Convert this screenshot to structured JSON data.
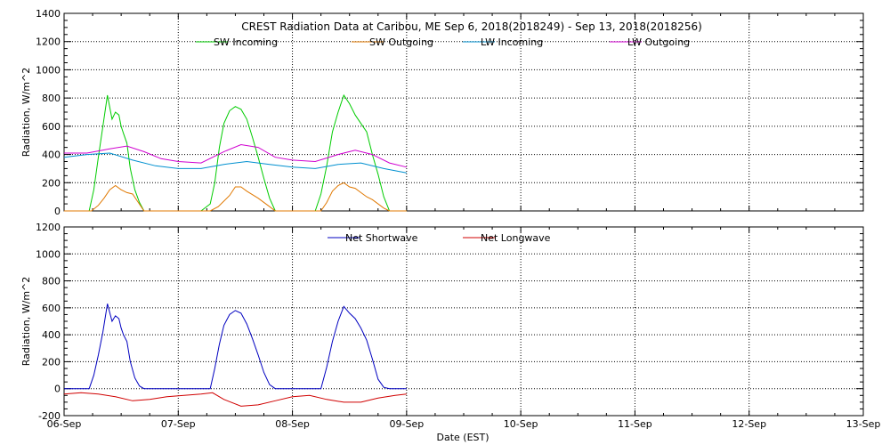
{
  "chart_data": [
    {
      "type": "line",
      "title": "CREST Radiation Data at Caribou, ME   Sep  6, 2018(2018249) - Sep 13, 2018(2018256)",
      "ylabel": "Radiation, W/m^2",
      "xlabel": "",
      "ylim": [
        0,
        1400
      ],
      "yticks": [
        "0",
        "200",
        "400",
        "600",
        "800",
        "1000",
        "1200",
        "1400"
      ],
      "xlim": [
        0,
        7
      ],
      "grid": true,
      "legend_position": "top",
      "series": [
        {
          "name": "SW Incoming",
          "color": "#00cc00",
          "x": [
            0,
            0.22,
            0.26,
            0.3,
            0.34,
            0.38,
            0.42,
            0.45,
            0.48,
            0.5,
            0.52,
            0.55,
            0.58,
            0.62,
            0.66,
            0.7,
            0.8,
            1.0,
            1.2,
            1.28,
            1.32,
            1.36,
            1.4,
            1.45,
            1.5,
            1.55,
            1.6,
            1.65,
            1.7,
            1.75,
            1.8,
            1.85,
            2.0,
            2.2,
            2.25,
            2.3,
            2.35,
            2.4,
            2.45,
            2.5,
            2.55,
            2.6,
            2.65,
            2.7,
            2.75,
            2.8,
            2.85,
            3.0
          ],
          "y": [
            0,
            0,
            150,
            380,
            600,
            820,
            650,
            700,
            680,
            600,
            550,
            480,
            300,
            150,
            60,
            0,
            0,
            0,
            0,
            50,
            200,
            450,
            620,
            710,
            740,
            720,
            650,
            520,
            380,
            230,
            90,
            0,
            0,
            0,
            120,
            320,
            560,
            700,
            820,
            760,
            680,
            620,
            560,
            400,
            260,
            100,
            0,
            0
          ]
        },
        {
          "name": "SW Outgoing",
          "color": "#e07800",
          "x": [
            0,
            0.24,
            0.3,
            0.35,
            0.4,
            0.45,
            0.5,
            0.55,
            0.6,
            0.65,
            0.7,
            1.0,
            1.28,
            1.35,
            1.45,
            1.5,
            1.55,
            1.6,
            1.7,
            1.8,
            1.85,
            2.0,
            2.25,
            2.3,
            2.35,
            2.4,
            2.45,
            2.5,
            2.55,
            2.6,
            2.65,
            2.7,
            2.8,
            2.85,
            3.0
          ],
          "y": [
            0,
            0,
            40,
            90,
            150,
            180,
            150,
            130,
            120,
            60,
            0,
            0,
            0,
            30,
            110,
            170,
            170,
            140,
            90,
            30,
            0,
            0,
            0,
            60,
            140,
            180,
            200,
            170,
            160,
            130,
            100,
            80,
            20,
            0,
            0
          ]
        },
        {
          "name": "LW Incoming",
          "color": "#0090d0",
          "x": [
            0,
            0.2,
            0.4,
            0.6,
            0.8,
            1.0,
            1.2,
            1.4,
            1.6,
            1.8,
            2.0,
            2.2,
            2.4,
            2.6,
            2.8,
            3.0
          ],
          "y": [
            380,
            400,
            410,
            360,
            320,
            300,
            300,
            330,
            350,
            330,
            310,
            300,
            330,
            340,
            300,
            270
          ]
        },
        {
          "name": "LW Outgoing",
          "color": "#d000d0",
          "x": [
            0,
            0.2,
            0.4,
            0.55,
            0.7,
            0.85,
            1.0,
            1.2,
            1.4,
            1.55,
            1.7,
            1.85,
            2.0,
            2.2,
            2.4,
            2.55,
            2.7,
            2.85,
            3.0
          ],
          "y": [
            410,
            410,
            440,
            460,
            420,
            370,
            350,
            340,
            420,
            470,
            450,
            380,
            360,
            350,
            400,
            430,
            400,
            340,
            310
          ]
        }
      ]
    },
    {
      "type": "line",
      "title": "",
      "ylabel": "Radiation, W/m^2",
      "xlabel": "Date (EST)",
      "ylim": [
        -200,
        1200
      ],
      "yticks": [
        "-200",
        "0",
        "200",
        "400",
        "600",
        "800",
        "1000",
        "1200"
      ],
      "xlim": [
        0,
        7
      ],
      "categories": [
        "06-Sep",
        "07-Sep",
        "08-Sep",
        "09-Sep",
        "10-Sep",
        "11-Sep",
        "12-Sep",
        "13-Sep"
      ],
      "grid": true,
      "legend_position": "top",
      "series": [
        {
          "name": "Net Shortwave",
          "color": "#0000c0",
          "x": [
            0,
            0.22,
            0.26,
            0.3,
            0.34,
            0.38,
            0.42,
            0.45,
            0.48,
            0.5,
            0.52,
            0.55,
            0.58,
            0.62,
            0.66,
            0.7,
            1.0,
            1.28,
            1.32,
            1.36,
            1.4,
            1.45,
            1.5,
            1.55,
            1.6,
            1.65,
            1.7,
            1.75,
            1.8,
            1.85,
            2.0,
            2.25,
            2.3,
            2.35,
            2.4,
            2.45,
            2.5,
            2.55,
            2.6,
            2.65,
            2.7,
            2.75,
            2.8,
            2.85,
            3.0
          ],
          "y": [
            0,
            0,
            100,
            250,
            420,
            630,
            500,
            540,
            520,
            450,
            400,
            350,
            200,
            80,
            20,
            0,
            0,
            0,
            150,
            330,
            470,
            550,
            580,
            560,
            480,
            370,
            250,
            120,
            30,
            0,
            0,
            0,
            160,
            350,
            500,
            610,
            560,
            520,
            450,
            360,
            220,
            70,
            10,
            0,
            0
          ]
        },
        {
          "name": "Net Longwave",
          "color": "#d00000",
          "x": [
            0,
            0.15,
            0.3,
            0.45,
            0.6,
            0.75,
            0.9,
            1.05,
            1.2,
            1.3,
            1.4,
            1.55,
            1.7,
            1.85,
            2.0,
            2.15,
            2.3,
            2.45,
            2.6,
            2.75,
            2.9,
            3.0
          ],
          "y": [
            -40,
            -30,
            -40,
            -60,
            -90,
            -80,
            -60,
            -50,
            -40,
            -30,
            -80,
            -130,
            -120,
            -90,
            -60,
            -50,
            -80,
            -100,
            -100,
            -70,
            -50,
            -40
          ]
        }
      ]
    }
  ]
}
